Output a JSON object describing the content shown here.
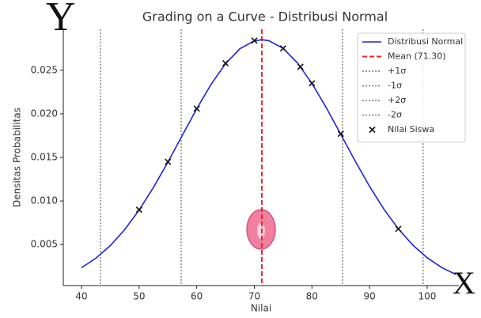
{
  "chart_data": {
    "type": "line",
    "title": "Grading on a Curve - Distribusi Normal",
    "xlabel": "Nilai",
    "ylabel": "Densitas Probabilitas",
    "xlim": [
      36.84,
      105.5
    ],
    "ylim": [
      0.0003,
      0.0297
    ],
    "xticks": [
      40,
      50,
      60,
      70,
      80,
      90,
      100
    ],
    "yticks": [
      0.005,
      {
        "value": 0.01,
        "label": "0.010"
      },
      0.015,
      {
        "value": 0.02,
        "label": "0.020"
      },
      0.025
    ],
    "x": [
      40,
      42.5,
      45,
      47.5,
      50,
      52.5,
      55,
      57.5,
      60,
      62.5,
      65,
      67.5,
      70,
      71.3,
      72.5,
      75,
      77.5,
      80,
      82.5,
      85,
      87.5,
      90,
      92.5,
      95,
      97.5,
      100,
      102.5,
      105
    ],
    "series": [
      {
        "name": "Distribusi Normal",
        "color": "#2222dd",
        "values": [
          0.00234,
          0.00344,
          0.00488,
          0.00672,
          0.00896,
          0.01157,
          0.01447,
          0.01753,
          0.02058,
          0.02339,
          0.02575,
          0.02747,
          0.02837,
          0.0285,
          0.02839,
          0.02752,
          0.02583,
          0.02349,
          0.02069,
          0.01765,
          0.01459,
          0.01168,
          0.00905,
          0.0068,
          0.00495,
          0.00349,
          0.00238,
          0.00157
        ]
      }
    ],
    "vlines": [
      {
        "name": "Mean (71.30)",
        "value": 71.3,
        "color": "#ee2222",
        "style": "dashed"
      },
      {
        "name": "+1σ",
        "value": 85.3,
        "color": "#777777",
        "style": "dotted"
      },
      {
        "name": "-1σ",
        "value": 57.3,
        "color": "#777777",
        "style": "dotted"
      },
      {
        "name": "+2σ",
        "value": 99.3,
        "color": "#777777",
        "style": "dotted"
      },
      {
        "name": "-2σ",
        "value": 43.3,
        "color": "#777777",
        "style": "dotted"
      }
    ],
    "scatter": {
      "name": "Nilai Siswa",
      "color": "#111111",
      "x": [
        50,
        55,
        60,
        65,
        70,
        75,
        78,
        80,
        85,
        95
      ],
      "values": [
        0.009,
        0.0145,
        0.0206,
        0.0258,
        0.0284,
        0.0275,
        0.0254,
        0.0235,
        0.0177,
        0.0068
      ]
    },
    "legend": "upper right",
    "annotations": [
      "Y",
      "X"
    ]
  }
}
